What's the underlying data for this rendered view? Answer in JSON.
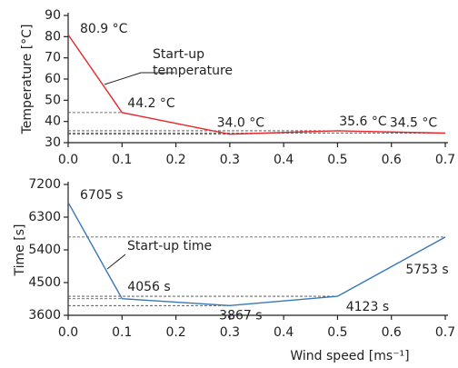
{
  "chart_data": [
    {
      "type": "line",
      "y_label": "Temperature [°C]",
      "x": [
        0,
        0.1,
        0.3,
        0.5,
        0.7
      ],
      "series": [
        {
          "name": "Start-up temperature",
          "color": "#e8262b",
          "values": [
            80.9,
            44.2,
            34.0,
            35.6,
            34.5
          ],
          "value_labels": [
            "80.9 °C",
            "44.2 °C",
            "34.0 °C",
            "35.6 °C",
            "34.5 °C"
          ]
        }
      ],
      "annotation": [
        "Start-up",
        "temperature"
      ],
      "xlim": [
        0,
        0.7
      ],
      "xticks": [
        {
          "value": 0,
          "label": "0.0"
        },
        0.1,
        0.2,
        0.3,
        0.4,
        0.5,
        0.6,
        0.7
      ],
      "ylim": [
        30,
        90
      ],
      "yticks": [
        30,
        40,
        50,
        60,
        70,
        80,
        90
      ],
      "grid": false
    },
    {
      "type": "line",
      "y_label": "Time [s]",
      "x_label": "Wind speed [ms⁻¹]",
      "x": [
        0,
        0.1,
        0.3,
        0.5,
        0.7
      ],
      "series": [
        {
          "name": "Start-up time",
          "color": "#3a77b8",
          "values": [
            6705,
            4056,
            3867,
            4123,
            5753
          ],
          "value_labels": [
            "6705 s",
            "4056 s",
            "3867 s",
            "4123 s",
            "5753 s"
          ]
        }
      ],
      "annotation": [
        "Start-up time"
      ],
      "xlim": [
        0,
        0.7
      ],
      "xticks": [
        {
          "value": 0,
          "label": "0.0"
        },
        0.1,
        0.2,
        0.3,
        0.4,
        0.5,
        0.6,
        0.7
      ],
      "ylim": [
        3600,
        7200
      ],
      "yticks": [
        3600,
        4500,
        5400,
        6300,
        7200
      ],
      "grid": false
    }
  ]
}
